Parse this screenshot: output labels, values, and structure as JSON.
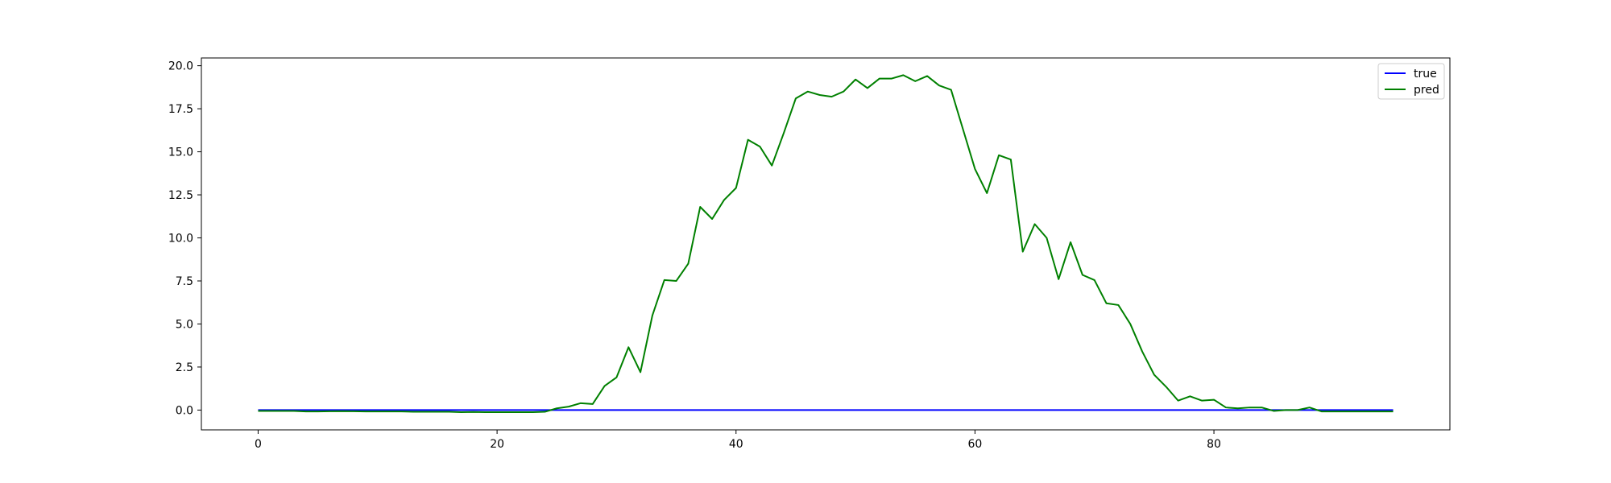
{
  "chart_data": {
    "type": "line",
    "title": "",
    "xlabel": "",
    "ylabel": "",
    "xlim": [
      -4.75,
      99.75
    ],
    "ylim": [
      -1.15,
      20.45
    ],
    "xticks": [
      0,
      20,
      40,
      60,
      80
    ],
    "yticks": [
      0.0,
      2.5,
      5.0,
      7.5,
      10.0,
      12.5,
      15.0,
      17.5,
      20.0
    ],
    "grid": false,
    "legend": {
      "placement": "top-right"
    },
    "x": [
      0,
      1,
      2,
      3,
      4,
      5,
      6,
      7,
      8,
      9,
      10,
      11,
      12,
      13,
      14,
      15,
      16,
      17,
      18,
      19,
      20,
      21,
      22,
      23,
      24,
      25,
      26,
      27,
      28,
      29,
      30,
      31,
      32,
      33,
      34,
      35,
      36,
      37,
      38,
      39,
      40,
      41,
      42,
      43,
      44,
      45,
      46,
      47,
      48,
      49,
      50,
      51,
      52,
      53,
      54,
      55,
      56,
      57,
      58,
      59,
      60,
      61,
      62,
      63,
      64,
      65,
      66,
      67,
      68,
      69,
      70,
      71,
      72,
      73,
      74,
      75,
      76,
      77,
      78,
      79,
      80,
      81,
      82,
      83,
      84,
      85,
      86,
      87,
      88,
      89,
      90,
      91,
      92,
      93,
      94,
      95
    ],
    "series": [
      {
        "name": "true",
        "color": "#0000ff",
        "values": [
          0,
          0,
          0,
          0,
          0,
          0,
          0,
          0,
          0,
          0,
          0,
          0,
          0,
          0,
          0,
          0,
          0,
          0,
          0,
          0,
          0,
          0,
          0,
          0,
          0,
          0,
          0,
          0,
          0,
          0,
          0,
          0,
          0,
          0,
          0,
          0,
          0,
          0,
          0,
          0,
          0,
          0,
          0,
          0,
          0,
          0,
          0,
          0,
          0,
          0,
          0,
          0,
          0,
          0,
          0,
          0,
          0,
          0,
          0,
          0,
          0,
          0,
          0,
          0,
          0,
          0,
          0,
          0,
          0,
          0,
          0,
          0,
          0,
          0,
          0,
          0,
          0,
          0,
          0,
          0,
          0,
          0,
          0,
          0,
          0,
          0,
          0,
          0,
          0,
          0,
          0,
          0,
          0,
          0,
          0,
          0
        ]
      },
      {
        "name": "pred",
        "color": "#008000",
        "values": [
          -0.05,
          -0.05,
          -0.05,
          -0.05,
          -0.08,
          -0.08,
          -0.07,
          -0.06,
          -0.07,
          -0.08,
          -0.08,
          -0.08,
          -0.08,
          -0.1,
          -0.1,
          -0.1,
          -0.1,
          -0.12,
          -0.11,
          -0.12,
          -0.12,
          -0.12,
          -0.12,
          -0.12,
          -0.1,
          0.1,
          0.2,
          0.4,
          0.35,
          1.4,
          1.9,
          3.65,
          2.2,
          5.5,
          7.55,
          7.5,
          8.5,
          11.8,
          11.1,
          12.2,
          12.9,
          15.7,
          15.3,
          14.2,
          16.1,
          18.1,
          18.5,
          18.3,
          18.2,
          18.5,
          19.2,
          18.7,
          19.25,
          19.25,
          19.45,
          19.1,
          19.4,
          18.85,
          18.6,
          16.3,
          14.0,
          12.6,
          14.8,
          14.55,
          9.2,
          10.8,
          10.0,
          7.6,
          9.75,
          7.85,
          7.55,
          6.2,
          6.1,
          5.0,
          3.4,
          2.05,
          1.35,
          0.55,
          0.8,
          0.55,
          0.6,
          0.15,
          0.1,
          0.15,
          0.15,
          -0.05,
          0.0,
          0.0,
          0.15,
          -0.08,
          -0.08,
          -0.08,
          -0.08,
          -0.08,
          -0.08,
          -0.08
        ]
      }
    ]
  }
}
